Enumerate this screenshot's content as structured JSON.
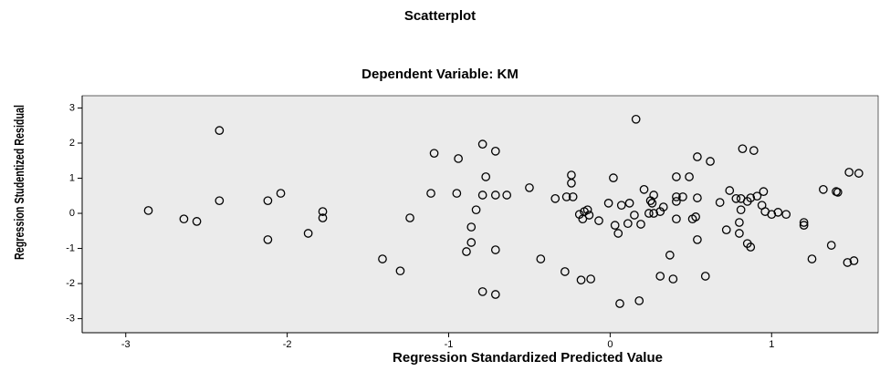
{
  "chart_data": {
    "type": "scatter",
    "title": "Scatterplot",
    "subtitle": "Dependent Variable: KM",
    "x_label": "Regression Standardized Predicted Value",
    "y_label": "Regression Studentized Residual",
    "xlim": [
      -3.27,
      1.66
    ],
    "ylim": [
      -3.4,
      3.35
    ],
    "xticks": [
      -3,
      -2,
      -1,
      0,
      1
    ],
    "yticks": [
      -3,
      -2,
      -1,
      0,
      1,
      2,
      3
    ],
    "color": "#000000",
    "background": "#ebebeb",
    "grid": false,
    "x": [
      -2.86,
      -2.64,
      -2.56,
      -2.42,
      -2.42,
      -2.12,
      -2.12,
      -2.04,
      -1.78,
      -1.78,
      -1.87,
      -1.41,
      -1.3,
      -1.24,
      -1.09,
      -1.11,
      -0.94,
      -0.95,
      -0.89,
      -0.86,
      -0.86,
      -0.83,
      -0.79,
      -0.77,
      -0.79,
      -0.79,
      -0.71,
      -0.71,
      -0.64,
      -0.71,
      -0.71,
      -0.5,
      -0.34,
      -0.43,
      -0.27,
      -0.28,
      -0.24,
      -0.24,
      -0.23,
      -0.19,
      -0.17,
      -0.16,
      -0.13,
      -0.18,
      -0.12,
      -0.14,
      -0.07,
      -0.01,
      0.02,
      0.05,
      0.03,
      0.07,
      0.11,
      0.12,
      0.06,
      0.16,
      0.15,
      0.18,
      0.19,
      0.21,
      0.25,
      0.24,
      0.27,
      0.31,
      0.33,
      0.27,
      0.26,
      0.31,
      0.37,
      0.39,
      0.41,
      0.41,
      0.41,
      0.41,
      0.45,
      0.49,
      0.51,
      0.53,
      0.54,
      0.54,
      0.54,
      0.59,
      0.62,
      0.68,
      0.72,
      0.74,
      0.78,
      0.8,
      0.8,
      0.81,
      0.82,
      0.81,
      0.85,
      0.87,
      0.85,
      0.87,
      0.89,
      0.91,
      0.95,
      0.94,
      0.96,
      1.0,
      1.04,
      1.09,
      1.2,
      1.2,
      1.25,
      1.32,
      1.37,
      1.4,
      1.41,
      1.47,
      1.51,
      1.48,
      1.54
    ],
    "values": [
      0.08,
      -0.16,
      -0.23,
      2.36,
      0.36,
      0.36,
      -0.75,
      0.57,
      0.05,
      -0.13,
      -0.57,
      -1.3,
      -1.64,
      -0.13,
      1.71,
      0.57,
      1.56,
      0.57,
      -1.09,
      -0.83,
      -0.39,
      0.1,
      1.97,
      1.04,
      0.52,
      -2.23,
      1.77,
      -2.31,
      0.52,
      0.52,
      -1.04,
      0.73,
      0.42,
      -1.3,
      0.47,
      -1.66,
      1.09,
      0.86,
      0.47,
      -0.03,
      -0.16,
      0.05,
      -0.05,
      -1.9,
      -1.87,
      0.1,
      -0.21,
      0.29,
      1.01,
      -0.57,
      -0.34,
      0.23,
      -0.29,
      0.29,
      -2.57,
      2.68,
      -0.05,
      -2.49,
      -0.31,
      0.68,
      0.36,
      0.0,
      0.0,
      0.05,
      0.18,
      0.52,
      0.29,
      -1.79,
      -1.19,
      -1.87,
      1.04,
      0.47,
      0.34,
      -0.16,
      0.47,
      1.04,
      -0.16,
      -0.1,
      0.44,
      -0.75,
      1.61,
      -1.79,
      1.48,
      0.31,
      -0.47,
      0.65,
      0.42,
      -0.26,
      -0.57,
      0.1,
      1.84,
      0.42,
      0.34,
      0.44,
      -0.86,
      -0.96,
      1.79,
      0.49,
      0.62,
      0.23,
      0.05,
      -0.03,
      0.03,
      -0.03,
      -0.26,
      -0.34,
      -1.3,
      0.68,
      -0.91,
      0.62,
      0.6,
      -1.4,
      -1.35,
      1.17,
      1.14
    ]
  }
}
